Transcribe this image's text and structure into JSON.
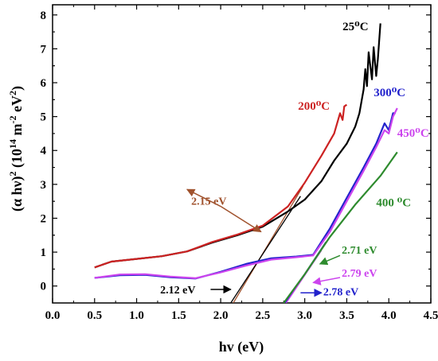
{
  "chart_data": {
    "type": "line",
    "xlabel": "hv (eV)",
    "ylabel": "(α hν)2 (10¹⁴ m⁻² eV²)",
    "xlim": [
      0.0,
      4.5
    ],
    "ylim": [
      -0.5,
      8.3
    ],
    "x_ticks": [
      "0.0",
      "0.5",
      "1.0",
      "1.5",
      "2.0",
      "2.5",
      "3.0",
      "3.5",
      "4.0",
      "4.5"
    ],
    "y_ticks": [
      "0",
      "1",
      "2",
      "3",
      "4",
      "5",
      "6",
      "7",
      "8"
    ],
    "colors": {
      "25C": "#000000",
      "200C": "#cc2222",
      "300C": "#2222cc",
      "400C": "#2e8b2e",
      "450C": "#cc44ee",
      "annotation_215": "#a0522d",
      "axis": "#000000"
    },
    "series": [
      {
        "name": "25⁰C",
        "color": "#000000",
        "x": [
          0.5,
          0.7,
          1.0,
          1.3,
          1.6,
          1.9,
          2.2,
          2.5,
          2.8,
          3.0,
          3.2,
          3.35,
          3.5,
          3.6,
          3.65,
          3.7,
          3.72,
          3.74,
          3.76,
          3.8,
          3.82,
          3.85,
          3.87,
          3.9
        ],
        "y": [
          0.55,
          0.72,
          0.8,
          0.88,
          1.02,
          1.28,
          1.5,
          1.75,
          2.2,
          2.55,
          3.1,
          3.7,
          4.2,
          4.7,
          5.1,
          5.8,
          6.4,
          5.9,
          6.9,
          6.1,
          7.05,
          6.2,
          6.7,
          7.75
        ]
      },
      {
        "name": "200⁰C",
        "color": "#cc2222",
        "x": [
          0.5,
          0.7,
          1.0,
          1.3,
          1.6,
          1.9,
          2.2,
          2.5,
          2.8,
          3.0,
          3.2,
          3.35,
          3.42,
          3.45,
          3.47,
          3.5
        ],
        "y": [
          0.55,
          0.72,
          0.8,
          0.88,
          1.02,
          1.3,
          1.52,
          1.78,
          2.35,
          3.05,
          3.85,
          4.5,
          5.1,
          4.9,
          5.3,
          5.35
        ]
      },
      {
        "name": "300⁰C",
        "color": "#2222cc",
        "x": [
          0.5,
          0.8,
          1.1,
          1.4,
          1.7,
          2.0,
          2.3,
          2.6,
          2.9,
          3.1,
          3.3,
          3.5,
          3.7,
          3.85,
          3.95,
          4.0,
          4.05,
          4.08
        ],
        "y": [
          0.24,
          0.32,
          0.33,
          0.26,
          0.22,
          0.42,
          0.65,
          0.82,
          0.87,
          0.92,
          1.7,
          2.6,
          3.5,
          4.2,
          4.8,
          4.6,
          5.1,
          5.1
        ]
      },
      {
        "name": "450⁰C",
        "color": "#cc44ee",
        "x": [
          0.5,
          0.8,
          1.1,
          1.4,
          1.7,
          2.0,
          2.3,
          2.6,
          2.9,
          3.1,
          3.3,
          3.5,
          3.7,
          3.85,
          3.95,
          4.0,
          4.05,
          4.1
        ],
        "y": [
          0.24,
          0.34,
          0.35,
          0.28,
          0.23,
          0.4,
          0.6,
          0.78,
          0.85,
          0.9,
          1.6,
          2.5,
          3.4,
          4.1,
          4.6,
          4.5,
          5.0,
          5.25
        ]
      },
      {
        "name": "400 ⁰C",
        "color": "#2e8b2e",
        "x": [
          2.75,
          3.0,
          3.3,
          3.6,
          3.9,
          4.1
        ],
        "y": [
          -0.5,
          0.35,
          1.45,
          2.4,
          3.25,
          3.95
        ]
      }
    ],
    "tangent_lines": [
      {
        "color": "#a0522d",
        "x": [
          2.15,
          2.98
        ],
        "y": [
          -0.5,
          2.95
        ]
      },
      {
        "color": "#000000",
        "x": [
          2.12,
          2.95
        ],
        "y": [
          -0.5,
          2.65
        ]
      },
      {
        "color": "#2222cc",
        "x": [
          2.77,
          3.25
        ],
        "y": [
          -0.5,
          1.3
        ]
      },
      {
        "color": "#cc44ee",
        "x": [
          2.78,
          3.2
        ],
        "y": [
          -0.5,
          1.05
        ]
      }
    ],
    "series_labels": [
      {
        "text": "25⁰C",
        "color": "#000000",
        "x": 3.45,
        "y": 7.55
      },
      {
        "text": "200⁰C",
        "color": "#cc2222",
        "x": 2.92,
        "y": 5.2
      },
      {
        "text": "300⁰C",
        "color": "#2222cc",
        "x": 3.82,
        "y": 5.6
      },
      {
        "text": "450⁰C",
        "color": "#cc44ee",
        "x": 4.1,
        "y": 4.4
      },
      {
        "text": "400 ⁰C",
        "color": "#2e8b2e",
        "x": 3.85,
        "y": 2.35
      }
    ],
    "annotations": [
      {
        "text": "2.15 eV",
        "color": "#a0522d",
        "text_x": 1.65,
        "text_y": 2.4,
        "arrows": [
          {
            "x1": 2.0,
            "y1": 2.35,
            "x2": 2.48,
            "y2": 1.6
          },
          {
            "x1": 2.0,
            "y1": 2.35,
            "x2": 1.6,
            "y2": 2.85
          }
        ]
      },
      {
        "text": "2.12 eV",
        "color": "#000000",
        "text_x": 1.28,
        "text_y": -0.22,
        "arrows": [
          {
            "x1": 1.88,
            "y1": -0.1,
            "x2": 2.12,
            "y2": -0.1
          }
        ]
      },
      {
        "text": "2.71 eV",
        "color": "#2e8b2e",
        "text_x": 3.44,
        "text_y": 0.95,
        "arrows": [
          {
            "x1": 3.42,
            "y1": 0.9,
            "x2": 3.18,
            "y2": 0.65
          }
        ]
      },
      {
        "text": "2.79 eV",
        "color": "#cc44ee",
        "text_x": 3.44,
        "text_y": 0.28,
        "arrows": [
          {
            "x1": 3.42,
            "y1": 0.25,
            "x2": 3.1,
            "y2": 0.1
          }
        ]
      },
      {
        "text": "2.78 eV",
        "color": "#2222cc",
        "text_x": 3.22,
        "text_y": -0.28,
        "arrows": [
          {
            "x1": 2.95,
            "y1": -0.2,
            "x2": 3.2,
            "y2": -0.2
          }
        ]
      }
    ]
  }
}
